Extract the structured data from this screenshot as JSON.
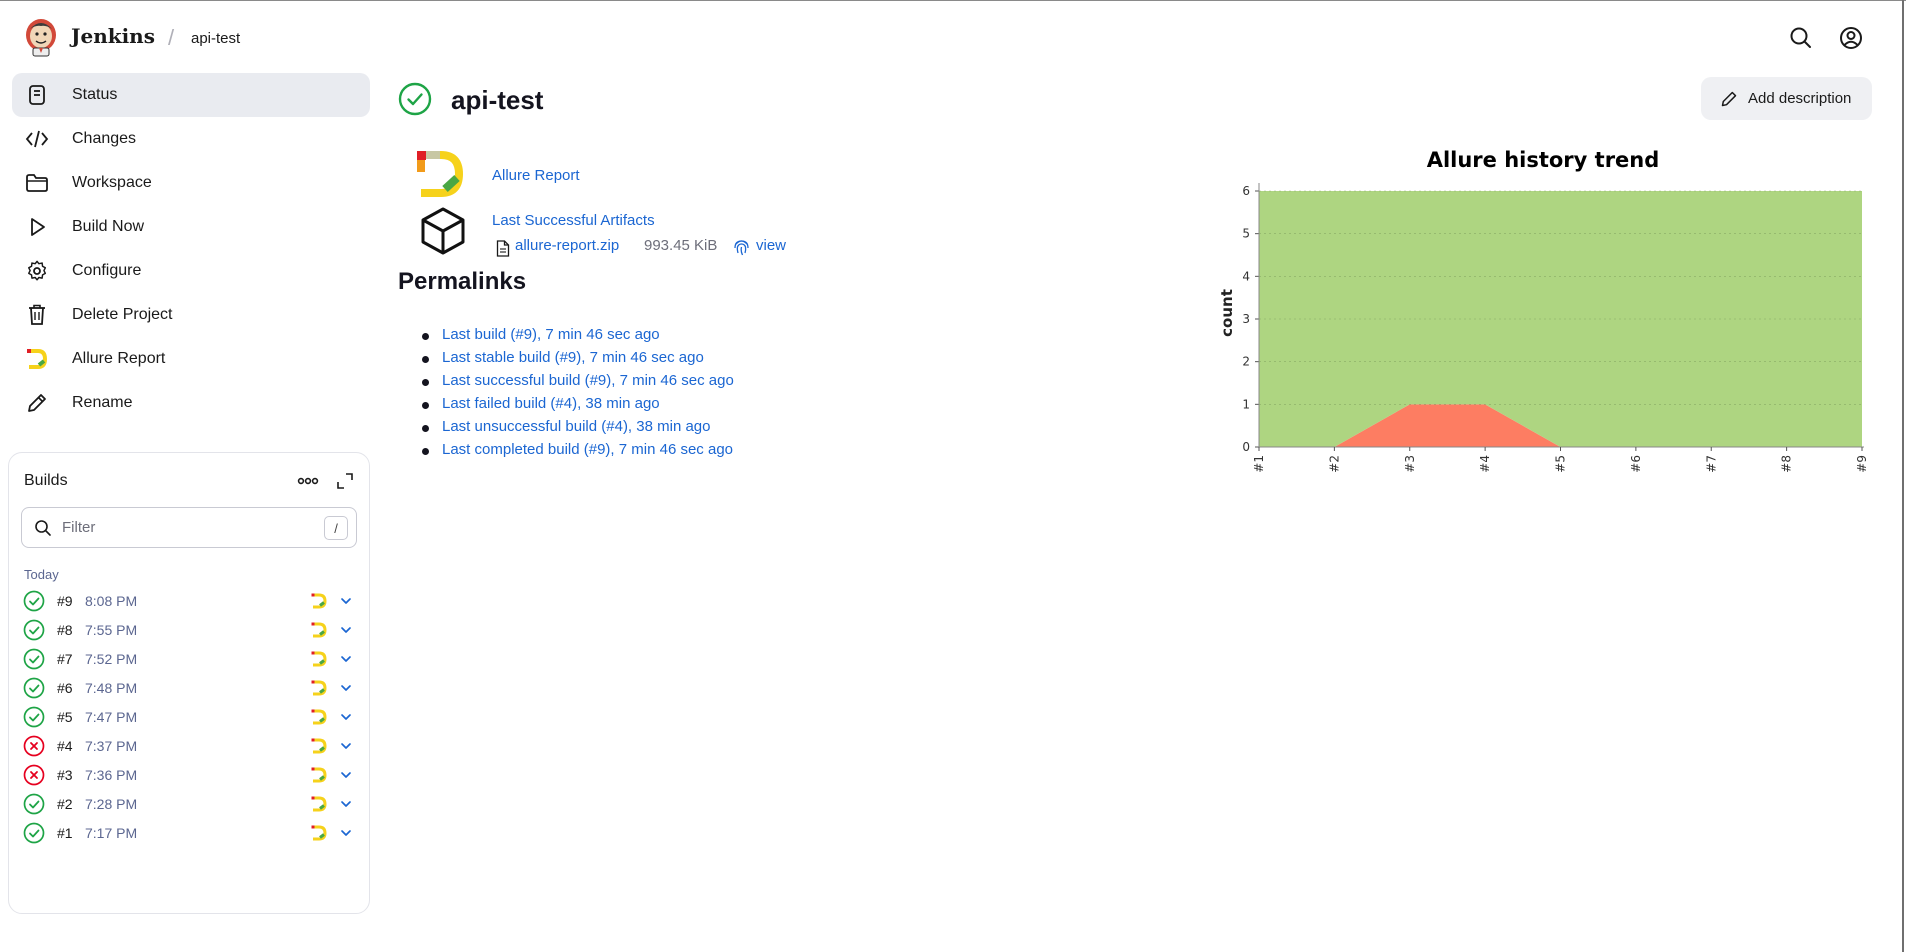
{
  "header": {
    "brand": "Jenkins",
    "breadcrumb": "api-test",
    "icons": [
      "jenkins-logo-icon",
      "search-icon",
      "user-account-icon"
    ]
  },
  "sidebar": {
    "items": [
      {
        "label": "Status",
        "icon": "status-icon",
        "active": true
      },
      {
        "label": "Changes",
        "icon": "code-icon"
      },
      {
        "label": "Workspace",
        "icon": "folder-icon"
      },
      {
        "label": "Build Now",
        "icon": "play-icon"
      },
      {
        "label": "Configure",
        "icon": "gear-icon"
      },
      {
        "label": "Delete Project",
        "icon": "trash-icon"
      },
      {
        "label": "Allure Report",
        "icon": "allure-icon"
      },
      {
        "label": "Rename",
        "icon": "pencil-icon"
      }
    ]
  },
  "builds": {
    "title": "Builds",
    "filter_placeholder": "Filter",
    "shortcut": "/",
    "group": "Today",
    "rows": [
      {
        "number": "#9",
        "time": "8:08 PM",
        "status": "success"
      },
      {
        "number": "#8",
        "time": "7:55 PM",
        "status": "success"
      },
      {
        "number": "#7",
        "time": "7:52 PM",
        "status": "success"
      },
      {
        "number": "#6",
        "time": "7:48 PM",
        "status": "success"
      },
      {
        "number": "#5",
        "time": "7:47 PM",
        "status": "success"
      },
      {
        "number": "#4",
        "time": "7:37 PM",
        "status": "failure"
      },
      {
        "number": "#3",
        "time": "7:36 PM",
        "status": "failure"
      },
      {
        "number": "#2",
        "time": "7:28 PM",
        "status": "success"
      },
      {
        "number": "#1",
        "time": "7:17 PM",
        "status": "success"
      }
    ]
  },
  "main": {
    "title": "api-test",
    "add_description": "Add description",
    "allure_report_link": "Allure Report",
    "last_artifacts_link": "Last Successful Artifacts",
    "artifact": {
      "name": "allure-report.zip",
      "size": "993.45 KiB",
      "view": "view"
    },
    "permalinks_title": "Permalinks",
    "permalinks": [
      "Last build (#9), 7 min 46 sec ago",
      "Last stable build (#9), 7 min 46 sec ago",
      "Last successful build (#9), 7 min 46 sec ago",
      "Last failed build (#4), 38 min ago",
      "Last unsuccessful build (#4), 38 min ago",
      "Last completed build (#9), 7 min 46 sec ago"
    ]
  },
  "colors": {
    "success": "#1ea446",
    "failure": "#e6001f",
    "link": "#1b66d2",
    "chart_passed": "#aed581",
    "chart_failed": "#fd7d62"
  },
  "chart_data": {
    "type": "area",
    "title": "Allure history trend",
    "ylabel": "count",
    "xlabel": "",
    "ylim": [
      0,
      6
    ],
    "yticks": [
      0,
      1,
      2,
      3,
      4,
      5,
      6
    ],
    "grid": true,
    "stacked": true,
    "categories": [
      "#1",
      "#2",
      "#3",
      "#4",
      "#5",
      "#6",
      "#7",
      "#8",
      "#9"
    ],
    "series": [
      {
        "values": [
          0,
          0,
          1,
          1,
          0,
          0,
          0,
          0,
          0
        ],
        "color": "#fd7d62"
      },
      {
        "values": [
          6,
          6,
          5,
          5,
          6,
          6,
          6,
          6,
          6
        ],
        "color": "#aed581"
      }
    ]
  }
}
